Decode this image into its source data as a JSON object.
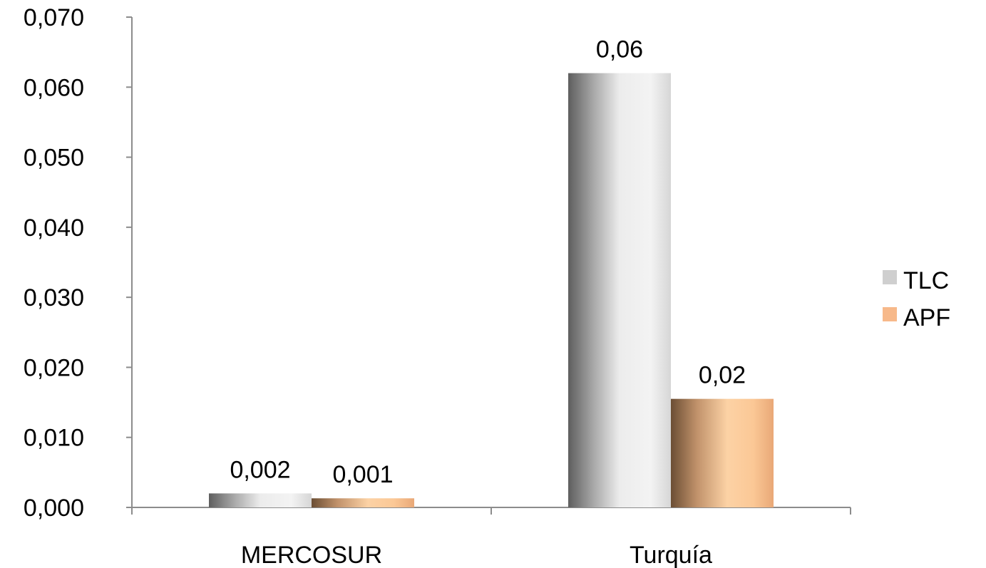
{
  "chart_data": {
    "type": "bar",
    "title": "",
    "xlabel": "",
    "ylabel": "",
    "categories": [
      "MERCOSUR",
      "Turquía"
    ],
    "series": [
      {
        "name": "TLC",
        "values": [
          0.002,
          0.062
        ],
        "labels": [
          "0,002",
          "0,06"
        ],
        "color": "#cfcfcf"
      },
      {
        "name": "APF",
        "values": [
          0.0013,
          0.0155
        ],
        "labels": [
          "0,001",
          "0,02"
        ],
        "color": "#f7b98a"
      }
    ],
    "ylim": [
      0,
      0.07
    ],
    "yticks": [
      0,
      0.01,
      0.02,
      0.03,
      0.04,
      0.05,
      0.06,
      0.07
    ],
    "ytick_labels": [
      "0,000",
      "0,010",
      "0,020",
      "0,030",
      "0,040",
      "0,050",
      "0,060",
      "0,070"
    ],
    "grid": false,
    "legend_position": "right"
  }
}
